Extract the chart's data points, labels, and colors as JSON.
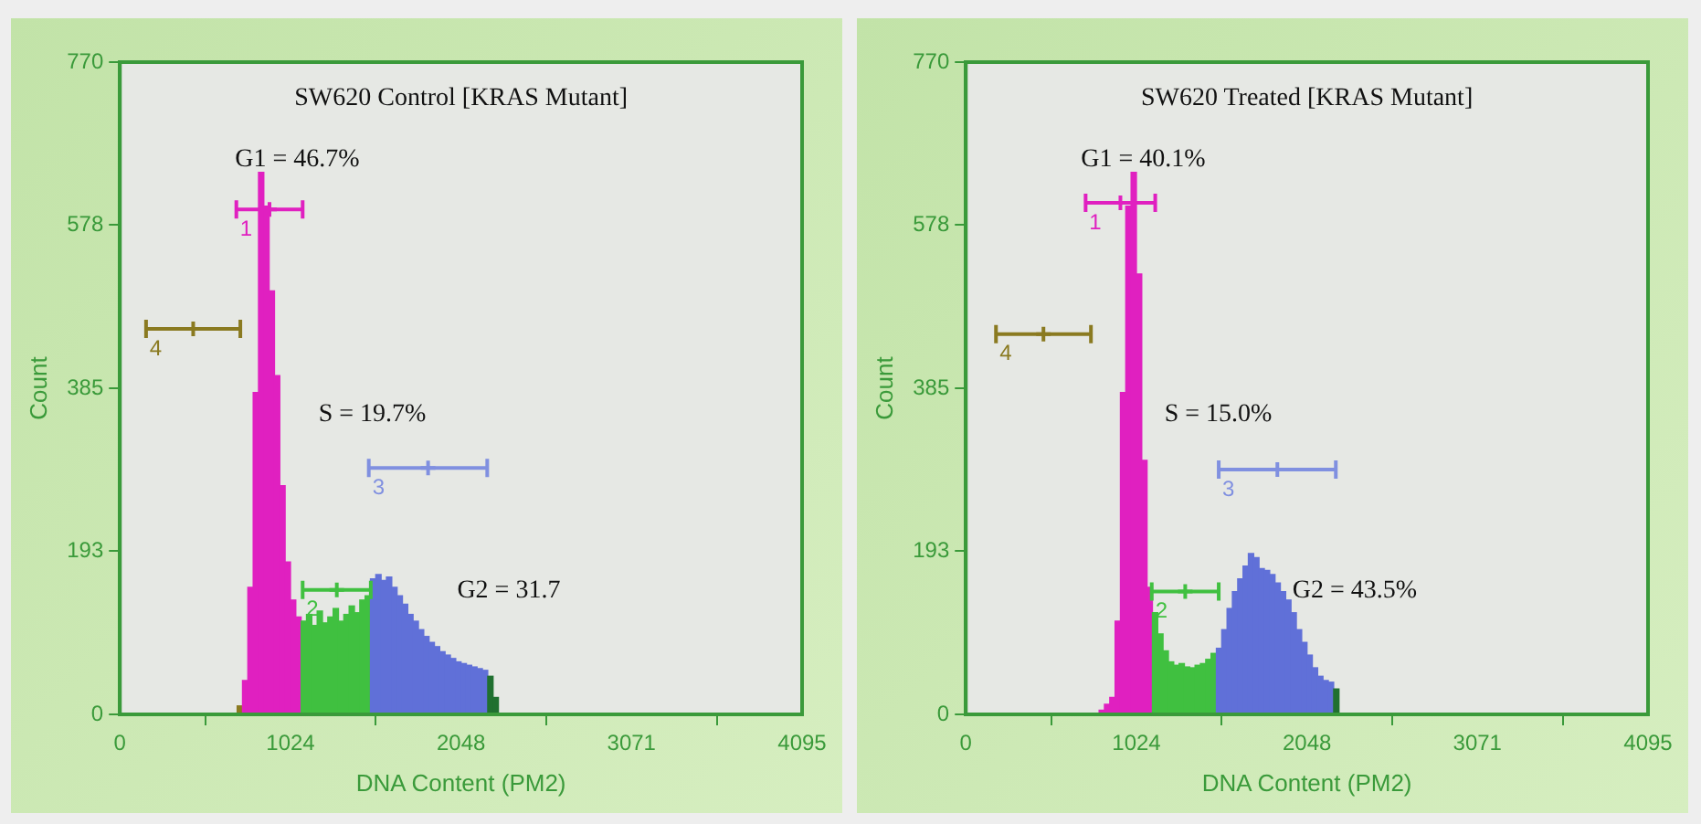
{
  "chart_data": [
    {
      "type": "histogram",
      "title": "SW620 Control [KRAS Mutant]",
      "xlabel": "DNA Content (PM2)",
      "ylabel": "Count",
      "marker": "cross",
      "bins": [
        704,
        736,
        768,
        800,
        832,
        864,
        896,
        928,
        960,
        992,
        1024,
        1056,
        1088,
        1120,
        1152,
        1184,
        1216,
        1248,
        1280,
        1312,
        1344,
        1376,
        1408,
        1440,
        1472,
        1504,
        1536,
        1568,
        1600,
        1632,
        1664,
        1696,
        1728,
        1760,
        1792,
        1824,
        1856,
        1888,
        1920,
        1952,
        1984,
        2016,
        2048,
        2080,
        2112,
        2144,
        2176,
        2208,
        2240,
        2272
      ],
      "values": [
        10,
        40,
        150,
        380,
        640,
        600,
        500,
        400,
        270,
        180,
        135,
        115,
        110,
        118,
        105,
        122,
        108,
        115,
        125,
        110,
        118,
        128,
        120,
        135,
        140,
        160,
        165,
        158,
        162,
        150,
        140,
        130,
        118,
        110,
        100,
        92,
        85,
        80,
        74,
        70,
        66,
        62,
        60,
        58,
        56,
        54,
        52,
        45,
        20
      ],
      "colors": [
        "#8a7a20",
        "#e020c0",
        "#e020c0",
        "#e020c0",
        "#e020c0",
        "#e020c0",
        "#e020c0",
        "#e020c0",
        "#e020c0",
        "#e020c0",
        "#e020c0",
        "#e020c0",
        "#40c040",
        "#40c040",
        "#40c040",
        "#40c040",
        "#40c040",
        "#40c040",
        "#40c040",
        "#40c040",
        "#40c040",
        "#40c040",
        "#40c040",
        "#40c040",
        "#40c040",
        "#6070d8",
        "#6070d8",
        "#6070d8",
        "#6070d8",
        "#6070d8",
        "#6070d8",
        "#6070d8",
        "#6070d8",
        "#6070d8",
        "#6070d8",
        "#6070d8",
        "#6070d8",
        "#6070d8",
        "#6070d8",
        "#6070d8",
        "#6070d8",
        "#6070d8",
        "#6070d8",
        "#6070d8",
        "#6070d8",
        "#6070d8",
        "#6070d8",
        "#207030",
        "#207030"
      ],
      "xlim": [
        0,
        4095
      ],
      "xticks": [
        0,
        1024,
        2048,
        3071,
        4095
      ],
      "ylim": [
        0,
        770
      ],
      "yticks": [
        0,
        193,
        385,
        578,
        770
      ],
      "series": [
        {
          "type": "scatter",
          "name": "1",
          "color": "#e020c0",
          "x": [
            898
          ],
          "values": [
            596
          ],
          "xerrors": [
            [
              699,
              1097
            ]
          ]
        },
        {
          "type": "scatter",
          "name": "2",
          "color": "#40c040",
          "x": [
            1302
          ],
          "values": [
            147
          ],
          "xerrors": [
            [
              1097,
              1506
            ]
          ]
        },
        {
          "type": "scatter",
          "name": "3",
          "color": "#8090e0",
          "x": [
            1850
          ],
          "values": [
            291
          ],
          "xerrors": [
            [
              1494,
              2205
            ]
          ]
        },
        {
          "type": "scatter",
          "name": "4",
          "color": "#8a7a20",
          "x": [
            440
          ],
          "values": [
            455
          ],
          "xerrors": [
            [
              157,
              723
            ]
          ]
        }
      ],
      "annotations": [
        "G1 = 46.7%",
        "S = 19.7%",
        "G2 = 31.7"
      ]
    },
    {
      "type": "histogram",
      "title": "SW620 Treated [KRAS Mutant]",
      "xlabel": "DNA Content (PM2)",
      "ylabel": "Count",
      "marker": "cross",
      "bins": [
        800,
        832,
        864,
        896,
        928,
        960,
        992,
        1024,
        1056,
        1088,
        1120,
        1152,
        1184,
        1216,
        1248,
        1280,
        1312,
        1344,
        1376,
        1408,
        1440,
        1472,
        1504,
        1536,
        1568,
        1600,
        1632,
        1664,
        1696,
        1728,
        1760,
        1792,
        1824,
        1856,
        1888,
        1920,
        1952,
        1984,
        2016,
        2048,
        2080,
        2112,
        2144,
        2176,
        2208,
        2240
      ],
      "values": [
        5,
        12,
        20,
        110,
        380,
        600,
        640,
        520,
        300,
        150,
        120,
        95,
        75,
        62,
        58,
        60,
        56,
        55,
        58,
        60,
        65,
        72,
        78,
        100,
        125,
        145,
        160,
        175,
        190,
        185,
        172,
        170,
        165,
        155,
        145,
        135,
        120,
        100,
        85,
        70,
        55,
        45,
        40,
        38,
        30
      ],
      "colors": [
        "#e020c0",
        "#e020c0",
        "#e020c0",
        "#e020c0",
        "#e020c0",
        "#e020c0",
        "#e020c0",
        "#e020c0",
        "#e020c0",
        "#e020c0",
        "#40c040",
        "#40c040",
        "#40c040",
        "#40c040",
        "#40c040",
        "#40c040",
        "#40c040",
        "#40c040",
        "#40c040",
        "#40c040",
        "#40c040",
        "#40c040",
        "#6070d8",
        "#6070d8",
        "#6070d8",
        "#6070d8",
        "#6070d8",
        "#6070d8",
        "#6070d8",
        "#6070d8",
        "#6070d8",
        "#6070d8",
        "#6070d8",
        "#6070d8",
        "#6070d8",
        "#6070d8",
        "#6070d8",
        "#6070d8",
        "#6070d8",
        "#6070d8",
        "#6070d8",
        "#6070d8",
        "#6070d8",
        "#6070d8",
        "#207030"
      ],
      "xlim": [
        0,
        4095
      ],
      "xticks": [
        0,
        1024,
        2048,
        3071,
        4095
      ],
      "ylim": [
        0,
        770
      ],
      "yticks": [
        0,
        193,
        385,
        578,
        770
      ],
      "series": [
        {
          "type": "scatter",
          "name": "1",
          "color": "#e020c0",
          "x": [
            928
          ],
          "values": [
            604
          ],
          "xerrors": [
            [
              719,
              1137
            ]
          ]
        },
        {
          "type": "scatter",
          "name": "2",
          "color": "#40c040",
          "x": [
            1317
          ],
          "values": [
            145
          ],
          "xerrors": [
            [
              1116,
              1518
            ]
          ]
        },
        {
          "type": "scatter",
          "name": "3",
          "color": "#8090e0",
          "x": [
            1870
          ],
          "values": [
            289
          ],
          "xerrors": [
            [
              1518,
              2221
            ]
          ]
        },
        {
          "type": "scatter",
          "name": "4",
          "color": "#8a7a20",
          "x": [
            466
          ],
          "values": [
            449
          ],
          "xerrors": [
            [
              181,
              751
            ]
          ]
        }
      ],
      "annotations": [
        "G1 = 40.1%",
        "S = 15.0%",
        "G2 = 43.5%"
      ]
    }
  ]
}
